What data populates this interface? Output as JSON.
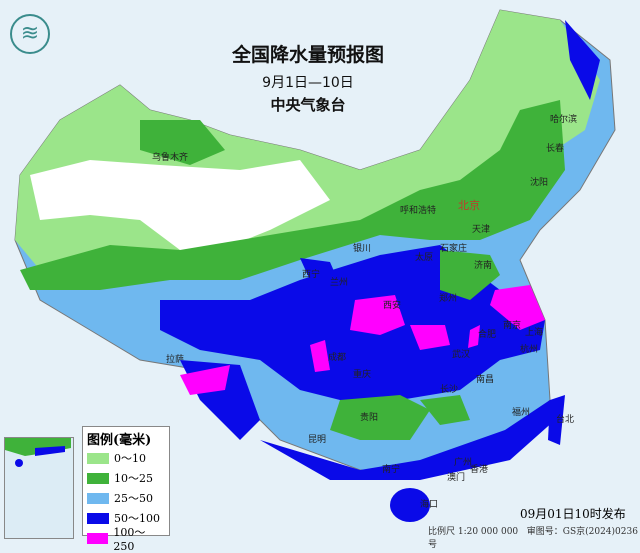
{
  "title": "全国降水量预报图",
  "period": "9月1日—10日",
  "agency": "中央气象台",
  "legend": {
    "title": "图例(毫米)",
    "items": [
      {
        "label": "0～10",
        "color": "#9be58a"
      },
      {
        "label": "10～25",
        "color": "#3fb23a"
      },
      {
        "label": "25～50",
        "color": "#6fb8ef"
      },
      {
        "label": "50～100",
        "color": "#0a0ae8"
      },
      {
        "label": "100～250",
        "color": "#ff00ff"
      }
    ]
  },
  "published": "09月01日10时发布",
  "scale": "比例尺 1:20 000 000",
  "review_no": "审图号：GS京(2024)0236号",
  "cities": [
    {
      "name": "乌鲁木齐"
    },
    {
      "name": "哈尔滨"
    },
    {
      "name": "长春"
    },
    {
      "name": "沈阳"
    },
    {
      "name": "呼和浩特"
    },
    {
      "name": "北京"
    },
    {
      "name": "天津"
    },
    {
      "name": "银川"
    },
    {
      "name": "石家庄"
    },
    {
      "name": "太原"
    },
    {
      "name": "济南"
    },
    {
      "name": "西宁"
    },
    {
      "name": "兰州"
    },
    {
      "name": "郑州"
    },
    {
      "name": "西安"
    },
    {
      "name": "拉萨"
    },
    {
      "name": "成都"
    },
    {
      "name": "武汉"
    },
    {
      "name": "合肥"
    },
    {
      "name": "南京"
    },
    {
      "name": "上海"
    },
    {
      "name": "杭州"
    },
    {
      "name": "重庆"
    },
    {
      "name": "长沙"
    },
    {
      "name": "南昌"
    },
    {
      "name": "福州"
    },
    {
      "name": "台北"
    },
    {
      "name": "贵阳"
    },
    {
      "name": "昆明"
    },
    {
      "name": "南宁"
    },
    {
      "name": "广州"
    },
    {
      "name": "香港"
    },
    {
      "name": "澳门"
    },
    {
      "name": "海口"
    }
  ]
}
